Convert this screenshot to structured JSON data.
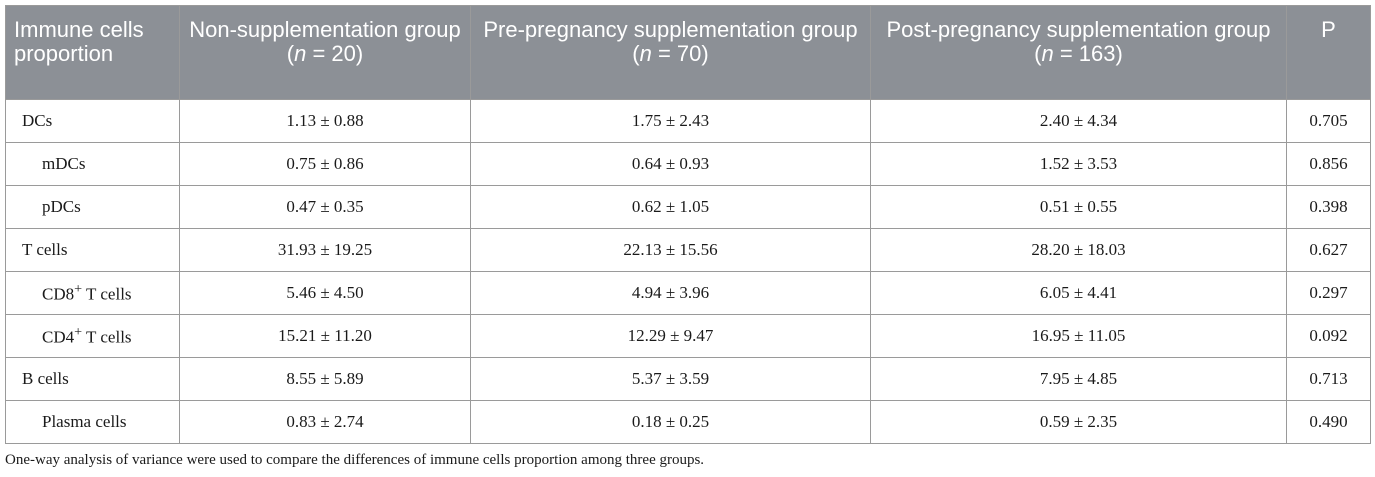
{
  "table": {
    "header": {
      "col0": "Immune cells proportion",
      "col1_pre": "Non-supplementation group (",
      "col1_n": "n",
      "col1_post": " = 20)",
      "col2_pre": "Pre-pregnancy supplementation group (",
      "col2_n": "n",
      "col2_post": " = 70)",
      "col3_pre": "Post-pregnancy supplementation group (",
      "col3_n": "n",
      "col3_post": " = 163)",
      "col4": "P"
    },
    "rows": [
      {
        "name": "DCs",
        "name_sup": "",
        "name_suffix": "",
        "non": "1.13 ± 0.88",
        "pre": "1.75 ± 2.43",
        "post": "2.40 ± 4.34",
        "p": "0.705"
      },
      {
        "name": "mDCs",
        "name_sup": "",
        "name_suffix": "",
        "non": "0.75 ± 0.86",
        "pre": "0.64 ± 0.93",
        "post": "1.52 ± 3.53",
        "p": "0.856"
      },
      {
        "name": "pDCs",
        "name_sup": "",
        "name_suffix": "",
        "non": "0.47 ± 0.35",
        "pre": "0.62 ± 1.05",
        "post": "0.51 ± 0.55",
        "p": "0.398"
      },
      {
        "name": "T cells",
        "name_sup": "",
        "name_suffix": "",
        "non": "31.93 ± 19.25",
        "pre": "22.13 ± 15.56",
        "post": "28.20 ± 18.03",
        "p": "0.627"
      },
      {
        "name": "CD8",
        "name_sup": "+",
        "name_suffix": " T cells",
        "non": "5.46 ± 4.50",
        "pre": "4.94 ± 3.96",
        "post": "6.05 ± 4.41",
        "p": "0.297"
      },
      {
        "name": "CD4",
        "name_sup": "+",
        "name_suffix": " T cells",
        "non": "15.21 ± 11.20",
        "pre": "12.29 ± 9.47",
        "post": "16.95 ± 11.05",
        "p": "0.092"
      },
      {
        "name": "B cells",
        "name_sup": "",
        "name_suffix": "",
        "non": "8.55 ± 5.89",
        "pre": "5.37 ± 3.59",
        "post": "7.95 ± 4.85",
        "p": "0.713"
      },
      {
        "name": "Plasma cells",
        "name_sup": "",
        "name_suffix": "",
        "non": "0.83 ± 2.74",
        "pre": "0.18 ± 0.25",
        "post": "0.59 ± 2.35",
        "p": "0.490"
      }
    ]
  },
  "footnote": "One-way analysis of variance were used to compare the differences of immune cells proportion among three groups."
}
